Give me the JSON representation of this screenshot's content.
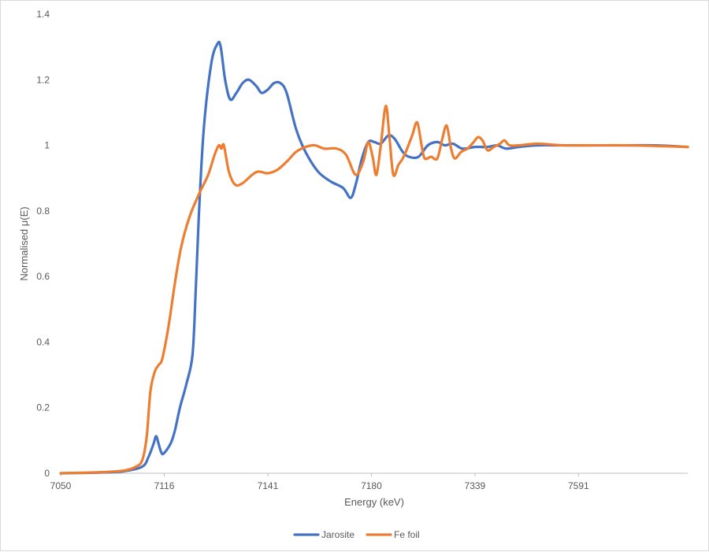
{
  "chart_data": {
    "type": "line",
    "title": "",
    "xlabel": "Energy (keV)",
    "ylabel": "Normalised μ(E)",
    "ylim": [
      0,
      1.4
    ],
    "yticks": [
      0,
      0.2,
      0.4,
      0.6,
      0.8,
      1,
      1.2,
      1.4
    ],
    "ytick_labels": [
      "0",
      "0.2",
      "0.4",
      "0.6",
      "0.8",
      "1",
      "1.2",
      "1.4"
    ],
    "xticks": [
      {
        "label": "7050",
        "index": 0
      },
      {
        "label": "7116",
        "index": 165
      },
      {
        "label": "7141",
        "index": 330
      },
      {
        "label": "7180",
        "index": 495
      },
      {
        "label": "7339",
        "index": 660
      },
      {
        "label": "7591",
        "index": 825
      }
    ],
    "x_point_count": 1000,
    "grid": false,
    "legend_position": "bottom",
    "series": [
      {
        "name": "Jarosite",
        "color": "#4472C4",
        "points": [
          [
            0,
            0
          ],
          [
            60,
            0.002
          ],
          [
            100,
            0.006
          ],
          [
            130,
            0.02
          ],
          [
            140,
            0.05
          ],
          [
            148,
            0.09
          ],
          [
            152,
            0.113
          ],
          [
            156,
            0.09
          ],
          [
            160,
            0.065
          ],
          [
            164,
            0.06
          ],
          [
            175,
            0.09
          ],
          [
            182,
            0.13
          ],
          [
            190,
            0.2
          ],
          [
            200,
            0.27
          ],
          [
            210,
            0.36
          ],
          [
            215,
            0.55
          ],
          [
            220,
            0.78
          ],
          [
            228,
            1.05
          ],
          [
            240,
            1.25
          ],
          [
            250,
            1.31
          ],
          [
            255,
            1.3
          ],
          [
            262,
            1.2
          ],
          [
            270,
            1.14
          ],
          [
            280,
            1.16
          ],
          [
            290,
            1.19
          ],
          [
            300,
            1.2
          ],
          [
            312,
            1.18
          ],
          [
            320,
            1.16
          ],
          [
            330,
            1.17
          ],
          [
            340,
            1.19
          ],
          [
            350,
            1.19
          ],
          [
            360,
            1.16
          ],
          [
            375,
            1.05
          ],
          [
            390,
            0.98
          ],
          [
            410,
            0.92
          ],
          [
            430,
            0.89
          ],
          [
            450,
            0.87
          ],
          [
            462,
            0.84
          ],
          [
            470,
            0.88
          ],
          [
            480,
            0.96
          ],
          [
            490,
            1.01
          ],
          [
            500,
            1.01
          ],
          [
            510,
            1.005
          ],
          [
            522,
            1.03
          ],
          [
            532,
            1.02
          ],
          [
            545,
            0.98
          ],
          [
            555,
            0.965
          ],
          [
            570,
            0.965
          ],
          [
            585,
            1.0
          ],
          [
            600,
            1.01
          ],
          [
            612,
            1.0
          ],
          [
            625,
            1.005
          ],
          [
            640,
            0.99
          ],
          [
            660,
            0.995
          ],
          [
            680,
            0.995
          ],
          [
            695,
            1.0
          ],
          [
            710,
            0.99
          ],
          [
            730,
            0.995
          ],
          [
            760,
            1.0
          ],
          [
            800,
            1.0
          ],
          [
            850,
            1.0
          ],
          [
            900,
            1.0
          ],
          [
            950,
            1.0
          ],
          [
            999,
            0.995
          ]
        ]
      },
      {
        "name": "Fe foil",
        "color": "#ED7D31",
        "points": [
          [
            0,
            0
          ],
          [
            60,
            0.003
          ],
          [
            100,
            0.008
          ],
          [
            120,
            0.02
          ],
          [
            130,
            0.04
          ],
          [
            137,
            0.11
          ],
          [
            143,
            0.25
          ],
          [
            150,
            0.31
          ],
          [
            156,
            0.33
          ],
          [
            162,
            0.35
          ],
          [
            172,
            0.45
          ],
          [
            182,
            0.58
          ],
          [
            192,
            0.69
          ],
          [
            205,
            0.78
          ],
          [
            220,
            0.85
          ],
          [
            235,
            0.91
          ],
          [
            245,
            0.97
          ],
          [
            252,
            1.0
          ],
          [
            256,
            0.99
          ],
          [
            260,
            1.0
          ],
          [
            268,
            0.92
          ],
          [
            278,
            0.88
          ],
          [
            290,
            0.885
          ],
          [
            305,
            0.91
          ],
          [
            315,
            0.92
          ],
          [
            330,
            0.915
          ],
          [
            345,
            0.925
          ],
          [
            360,
            0.95
          ],
          [
            375,
            0.98
          ],
          [
            390,
            0.995
          ],
          [
            405,
            1.0
          ],
          [
            420,
            0.99
          ],
          [
            440,
            0.99
          ],
          [
            455,
            0.97
          ],
          [
            470,
            0.91
          ],
          [
            482,
            0.95
          ],
          [
            490,
            1.01
          ],
          [
            497,
            0.965
          ],
          [
            503,
            0.91
          ],
          [
            510,
            1.0
          ],
          [
            518,
            1.12
          ],
          [
            524,
            1.02
          ],
          [
            530,
            0.91
          ],
          [
            538,
            0.94
          ],
          [
            545,
            0.96
          ],
          [
            552,
            0.99
          ],
          [
            560,
            1.03
          ],
          [
            568,
            1.07
          ],
          [
            575,
            1.0
          ],
          [
            580,
            0.96
          ],
          [
            590,
            0.965
          ],
          [
            600,
            0.96
          ],
          [
            608,
            1.02
          ],
          [
            615,
            1.06
          ],
          [
            622,
            0.99
          ],
          [
            628,
            0.96
          ],
          [
            638,
            0.98
          ],
          [
            648,
            0.99
          ],
          [
            658,
            1.01
          ],
          [
            665,
            1.025
          ],
          [
            672,
            1.015
          ],
          [
            680,
            0.985
          ],
          [
            690,
            0.995
          ],
          [
            700,
            1.005
          ],
          [
            707,
            1.015
          ],
          [
            715,
            1.0
          ],
          [
            730,
            1.0
          ],
          [
            760,
            1.005
          ],
          [
            800,
            1.0
          ],
          [
            850,
            1.0
          ],
          [
            900,
            1.0
          ],
          [
            950,
            0.998
          ],
          [
            999,
            0.995
          ]
        ]
      }
    ]
  }
}
